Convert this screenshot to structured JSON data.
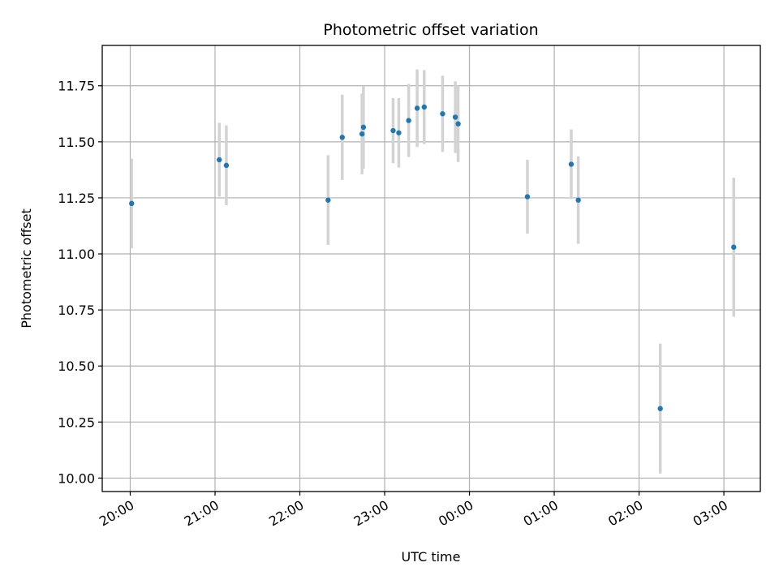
{
  "chart_data": {
    "type": "scatter",
    "title": "Photometric offset variation",
    "xlabel": "UTC time",
    "ylabel": "Photometric offset",
    "x_tick_labels": [
      "20:00",
      "21:00",
      "22:00",
      "23:00",
      "00:00",
      "01:00",
      "02:00",
      "03:00"
    ],
    "x_tick_hours": [
      20,
      21,
      22,
      23,
      24,
      25,
      26,
      27
    ],
    "xlim_hours": [
      19.67,
      27.43
    ],
    "y_ticks": [
      10.0,
      10.25,
      10.5,
      10.75,
      11.0,
      11.25,
      11.5,
      11.75
    ],
    "y_tick_labels": [
      "10.00",
      "10.25",
      "10.50",
      "10.75",
      "11.00",
      "11.25",
      "11.50",
      "11.75"
    ],
    "ylim": [
      9.94,
      11.93
    ],
    "grid": true,
    "marker_color": "#1f77b4",
    "errorbar_color": "#d3d3d3",
    "points": [
      {
        "time": "20:01",
        "y": 11.225,
        "yerr": 0.2
      },
      {
        "time": "21:03",
        "y": 11.42,
        "yerr": 0.165
      },
      {
        "time": "21:08",
        "y": 11.395,
        "yerr": 0.178
      },
      {
        "time": "22:20",
        "y": 11.24,
        "yerr": 0.2
      },
      {
        "time": "22:30",
        "y": 11.52,
        "yerr": 0.19
      },
      {
        "time": "22:44",
        "y": 11.535,
        "yerr": 0.18
      },
      {
        "time": "22:45",
        "y": 11.565,
        "yerr": 0.185
      },
      {
        "time": "23:06",
        "y": 11.55,
        "yerr": 0.145
      },
      {
        "time": "23:10",
        "y": 11.54,
        "yerr": 0.155
      },
      {
        "time": "23:17",
        "y": 11.595,
        "yerr": 0.163
      },
      {
        "time": "23:23",
        "y": 11.65,
        "yerr": 0.173
      },
      {
        "time": "23:28",
        "y": 11.655,
        "yerr": 0.165
      },
      {
        "time": "23:41",
        "y": 11.625,
        "yerr": 0.17
      },
      {
        "time": "23:50",
        "y": 11.61,
        "yerr": 0.16
      },
      {
        "time": "23:52",
        "y": 11.58,
        "yerr": 0.17
      },
      {
        "time": "00:41",
        "y": 11.255,
        "yerr": 0.165
      },
      {
        "time": "01:12",
        "y": 11.4,
        "yerr": 0.155
      },
      {
        "time": "01:17",
        "y": 11.24,
        "yerr": 0.195
      },
      {
        "time": "02:15",
        "y": 10.31,
        "yerr": 0.29
      },
      {
        "time": "03:07",
        "y": 11.03,
        "yerr": 0.31
      }
    ]
  }
}
